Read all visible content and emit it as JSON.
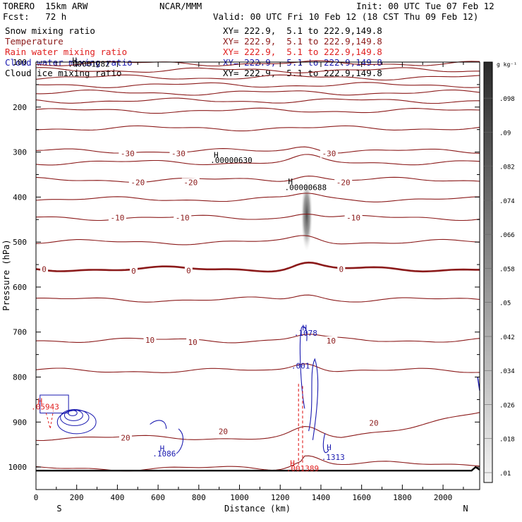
{
  "header": {
    "model": "TORERO  15km ARW",
    "center": "NCAR/MMM",
    "init": "Init: 00 UTC Tue 07 Feb 12",
    "fcst": "Fcst:   72 h",
    "valid": "Valid: 00 UTC Fri 10 Feb 12 (18 CST Thu 09 Feb 12)"
  },
  "fields": [
    {
      "name": "Snow mixing ratio",
      "color": "#000000",
      "xy": "XY= 222.9,  5.1 to 222.9,149.8"
    },
    {
      "name": "Temperature",
      "color": "#8b1a1a",
      "xy": "XY= 222.9,  5.1 to 222.9,149.8"
    },
    {
      "name": "Rain water mixing ratio",
      "color": "#e02020",
      "xy": "XY= 222.9,  5.1 to 222.9,149.8"
    },
    {
      "name": "Cloud water mixing ratio",
      "color": "#1a1ab0",
      "xy": "XY= 222.9,  5.1 to 222.9,149.8"
    },
    {
      "name": "Cloud ice mixing ratio",
      "color": "#000000",
      "xy": "XY= 222.9,  5.1 to 222.9,149.8"
    }
  ],
  "chart_data": {
    "type": "contour cross-section",
    "xlabel": "Distance (km)",
    "ylabel": "Pressure (hPa)",
    "xlim": [
      0,
      2180
    ],
    "ylim": [
      1050,
      100
    ],
    "x_ticks": [
      0,
      200,
      400,
      600,
      800,
      1000,
      1200,
      1400,
      1600,
      1800,
      2000
    ],
    "y_ticks": [
      100,
      200,
      300,
      400,
      500,
      600,
      700,
      800,
      900,
      1000
    ],
    "left_end": "S",
    "right_end": "N",
    "colorbar": {
      "unit": "g kg⁻¹",
      "levels": [
        ".01",
        ".018",
        ".026",
        ".034",
        ".042",
        ".05",
        ".058",
        ".066",
        ".074",
        ".082",
        ".09",
        ".098"
      ]
    },
    "temperature_isotherms_C": [
      -70,
      -65,
      -60,
      -55,
      -50,
      -45,
      -40,
      -35,
      -30,
      -25,
      -20,
      -15,
      -10,
      -5,
      0,
      5,
      10,
      15,
      20,
      25
    ],
    "temperature_labels": [
      {
        "text": "-30",
        "x": 450,
        "p": 303
      },
      {
        "text": "-30",
        "x": 700,
        "p": 303
      },
      {
        "text": "-30",
        "x": 1440,
        "p": 303
      },
      {
        "text": "-20",
        "x": 500,
        "p": 367
      },
      {
        "text": "-20",
        "x": 760,
        "p": 367
      },
      {
        "text": "-20",
        "x": 1510,
        "p": 367
      },
      {
        "text": "-10",
        "x": 400,
        "p": 446
      },
      {
        "text": "-10",
        "x": 720,
        "p": 446
      },
      {
        "text": "-10",
        "x": 1560,
        "p": 446
      },
      {
        "text": "0",
        "x": 40,
        "p": 560
      },
      {
        "text": "0",
        "x": 480,
        "p": 564
      },
      {
        "text": "0",
        "x": 750,
        "p": 563
      },
      {
        "text": "0",
        "x": 1500,
        "p": 560
      },
      {
        "text": "10",
        "x": 560,
        "p": 718
      },
      {
        "text": "10",
        "x": 770,
        "p": 722
      },
      {
        "text": "10",
        "x": 1450,
        "p": 719
      },
      {
        "text": "20",
        "x": 440,
        "p": 935
      },
      {
        "text": "20",
        "x": 920,
        "p": 921
      },
      {
        "text": "20",
        "x": 1660,
        "p": 902
      }
    ],
    "annotations": [
      {
        "text": "H",
        "x": 190,
        "p": 96,
        "color": "#000000"
      },
      {
        "text": ".00001282",
        "x": 260,
        "p": 104,
        "color": "#000000"
      },
      {
        "text": "H",
        "x": 885,
        "p": 306,
        "color": "#000000"
      },
      {
        "text": ".00000630",
        "x": 960,
        "p": 318,
        "color": "#000000"
      },
      {
        "text": "H",
        "x": 1250,
        "p": 365,
        "color": "#000000"
      },
      {
        "text": ".00000688",
        "x": 1325,
        "p": 378,
        "color": "#000000"
      },
      {
        "text": "H",
        "x": 1320,
        "p": 690,
        "color": "#1a1ab0"
      },
      {
        "text": ".1078",
        "x": 1325,
        "p": 702,
        "color": "#1a1ab0"
      },
      {
        "text": ".001",
        "x": 1300,
        "p": 775,
        "color": "#1a1ab0"
      },
      {
        "text": "H",
        "x": 20,
        "p": 853,
        "color": "#e02020"
      },
      {
        "text": ".05943",
        "x": 45,
        "p": 866,
        "color": "#e02020"
      },
      {
        "text": "H",
        "x": 620,
        "p": 958,
        "color": "#1a1ab0"
      },
      {
        "text": ".1086",
        "x": 630,
        "p": 970,
        "color": "#1a1ab0"
      },
      {
        "text": "H",
        "x": 1440,
        "p": 956,
        "color": "#1a1ab0"
      },
      {
        "text": ".1313",
        "x": 1460,
        "p": 978,
        "color": "#1a1ab0"
      },
      {
        "text": "H",
        "x": 1260,
        "p": 991,
        "color": "#e02020"
      },
      {
        "text": ".001389",
        "x": 1310,
        "p": 1003,
        "color": "#e02020"
      }
    ],
    "snow_max": {
      "x": 1320,
      "p_top": 360,
      "p_bottom": 520,
      "value": 0.05
    }
  }
}
